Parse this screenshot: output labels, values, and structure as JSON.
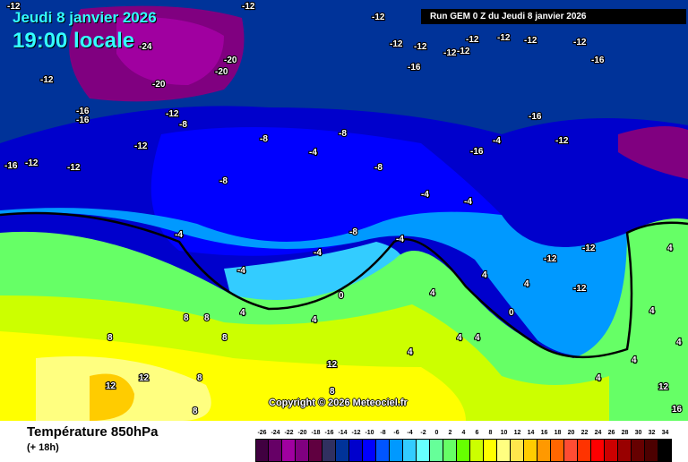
{
  "title": {
    "date": "Jeudi 8 janvier 2026",
    "time": "19:00 locale"
  },
  "run_info": "Run GEM 0 Z du Jeudi 8 janvier 2026",
  "copyright": "Copyright © 2026 Meteociel.fr",
  "footer": {
    "parameter": "Température 850hPa",
    "lead_time": "(+ 18h)"
  },
  "legend": {
    "labels": [
      "-26",
      "-24",
      "-22",
      "-20",
      "-18",
      "-16",
      "-14",
      "-12",
      "-10",
      "-8",
      "-6",
      "-4",
      "-2",
      "0",
      "2",
      "4",
      "6",
      "8",
      "10",
      "12",
      "14",
      "16",
      "18",
      "20",
      "22",
      "24",
      "26",
      "28",
      "30",
      "32",
      "34"
    ],
    "colors": [
      "#400040",
      "#660066",
      "#a000a0",
      "#800080",
      "#600040",
      "#303060",
      "#003399",
      "#0000cc",
      "#0000ff",
      "#0055ff",
      "#0099ff",
      "#33ccff",
      "#66ffff",
      "#66ff99",
      "#66ff66",
      "#66ff00",
      "#ccff00",
      "#ffff00",
      "#ffff80",
      "#ffe64c",
      "#ffcc00",
      "#ff9900",
      "#ff6600",
      "#ff4c33",
      "#ff3300",
      "#ff0000",
      "#cc0000",
      "#990000",
      "#660000",
      "#4c0000",
      "#000000"
    ]
  },
  "contour_labels": [
    "-12",
    "-24",
    "-20",
    "-20",
    "-20",
    "-12",
    "-16",
    "-16",
    "-12",
    "-12",
    "-8",
    "-16",
    "-12",
    "-8",
    "-8",
    "-12",
    "-12",
    "-12",
    "-12",
    "-12",
    "-12",
    "-12",
    "-12",
    "-12",
    "-12",
    "-16",
    "-16",
    "-12",
    "-16",
    "-16",
    "-4",
    "-4",
    "-8",
    "-8",
    "-4",
    "-4",
    "-4",
    "-8",
    "-4",
    "-4",
    "-4",
    "-12",
    "-12",
    "-12",
    "-12",
    "0",
    "4",
    "4",
    "8",
    "8",
    "8",
    "4",
    "4",
    "8",
    "8",
    "8",
    "8",
    "12",
    "12",
    "12",
    "4",
    "4",
    "4",
    "4",
    "4",
    "4",
    "12",
    "16",
    "0",
    "4",
    "4",
    "4"
  ]
}
